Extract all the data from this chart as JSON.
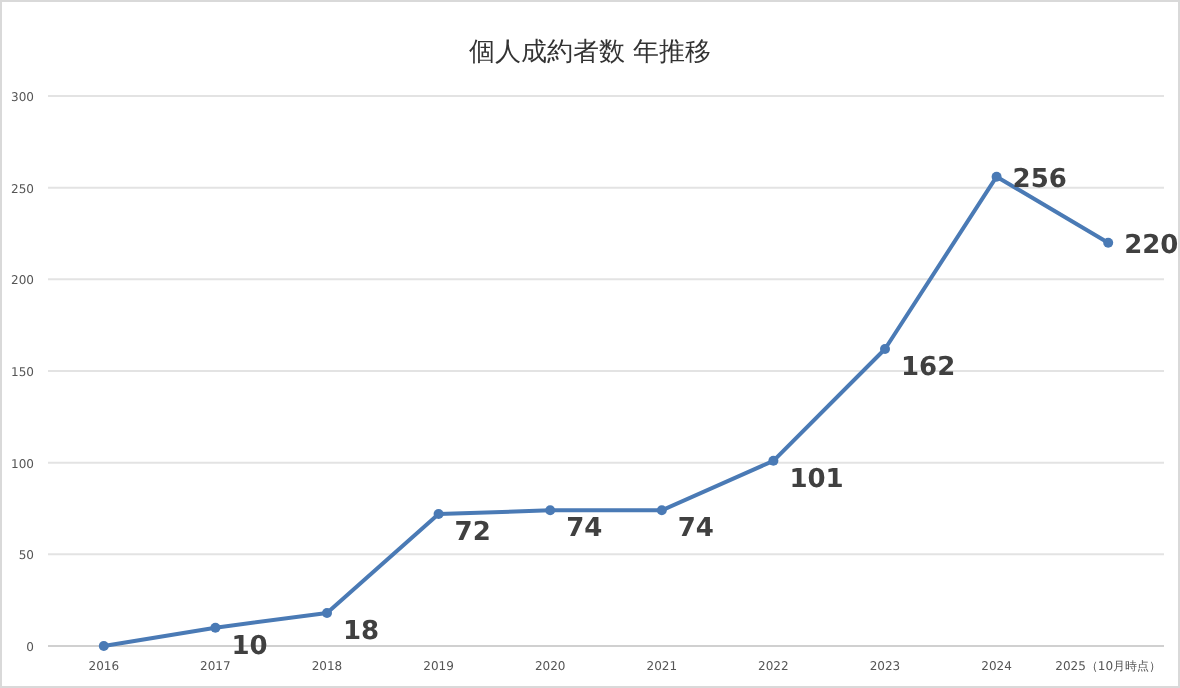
{
  "chart_data": {
    "type": "line",
    "title": "個人成約者数 年推移",
    "categories": [
      "2016",
      "2017",
      "2018",
      "2019",
      "2020",
      "2021",
      "2022",
      "2023",
      "2024",
      "2025（10月時点）"
    ],
    "values": [
      0,
      10,
      18,
      72,
      74,
      74,
      101,
      162,
      256,
      220
    ],
    "value_labels": [
      null,
      "10",
      "18",
      "72",
      "74",
      "74",
      "101",
      "162",
      "256",
      "220"
    ],
    "color": "#4a7ab5",
    "ylim": [
      0,
      300
    ],
    "yticks": [
      0,
      50,
      100,
      150,
      200,
      250,
      300
    ],
    "grid": "y",
    "marker": "circle",
    "line_style": "solid"
  }
}
